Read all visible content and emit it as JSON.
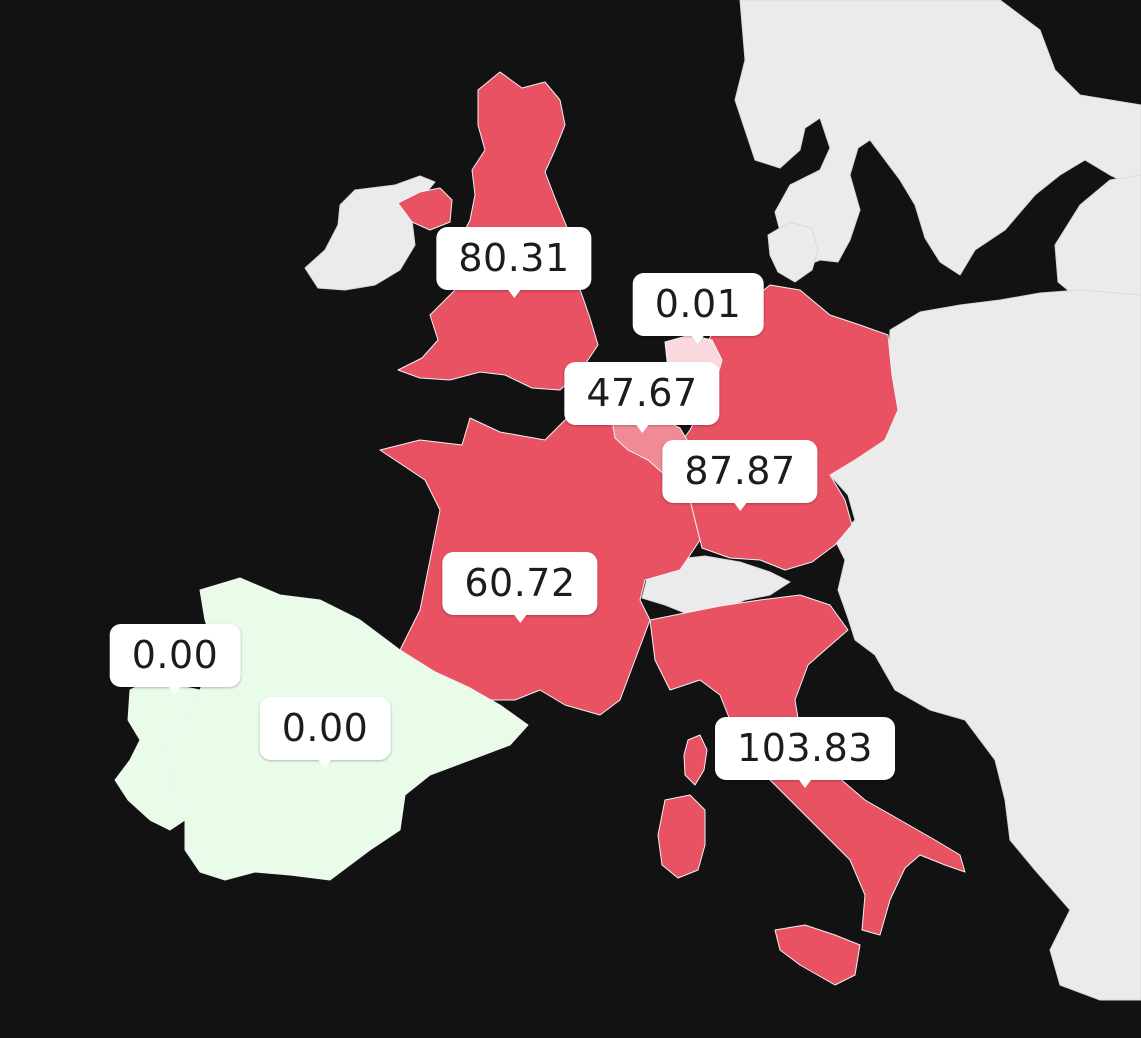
{
  "map": {
    "colors": {
      "background": "#121212",
      "high": "#e85263",
      "mid": "#f08a96",
      "low": "#f9d9dd",
      "zero": "#e9fbe9",
      "no_data": "#ebebeb"
    }
  },
  "regions": [
    {
      "id": "uk",
      "value": "80.31",
      "level": "high"
    },
    {
      "id": "ireland-north",
      "value": "",
      "level": "high"
    },
    {
      "id": "france",
      "value": "60.72",
      "level": "high"
    },
    {
      "id": "germany",
      "value": "87.87",
      "level": "high"
    },
    {
      "id": "belgium",
      "value": "47.67",
      "level": "mid"
    },
    {
      "id": "netherlands",
      "value": "0.01",
      "level": "low"
    },
    {
      "id": "italy",
      "value": "103.83",
      "level": "high"
    },
    {
      "id": "spain",
      "value": "0.00",
      "level": "zero"
    },
    {
      "id": "portugal",
      "value": "0.00",
      "level": "zero"
    }
  ],
  "labels": {
    "uk": "80.31",
    "netherlands": "0.01",
    "belgium": "47.67",
    "germany": "87.87",
    "france": "60.72",
    "portugal": "0.00",
    "spain": "0.00",
    "italy": "103.83"
  }
}
